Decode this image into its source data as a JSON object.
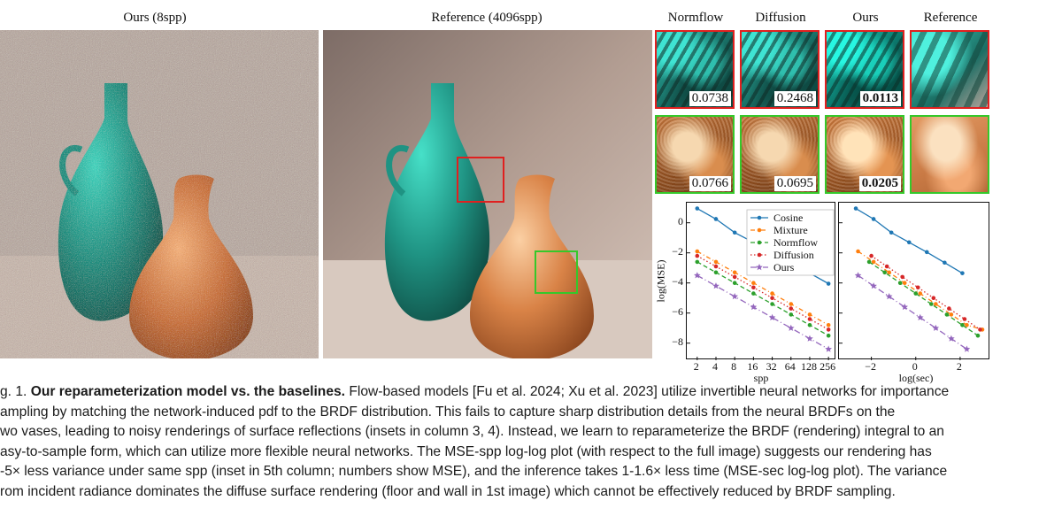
{
  "labels": {
    "ours_main": "Ours (8spp)",
    "reference_main": "Reference (4096spp)",
    "columns": [
      "Normflow",
      "Diffusion",
      "Ours",
      "Reference"
    ]
  },
  "insets": {
    "red_row_mse": [
      "0.0738",
      "0.2468",
      "0.0113"
    ],
    "green_row_mse": [
      "0.0766",
      "0.0695",
      "0.0205"
    ],
    "best_index": 2
  },
  "colors": {
    "red_box": "#e0201f",
    "green_box": "#35c82a",
    "cosine": "#1f77b4",
    "mixture": "#ff7f0e",
    "normflow": "#2ca02c",
    "diffusion": "#d62728",
    "ours": "#9467bd"
  },
  "chart_data": [
    {
      "type": "line",
      "title": "",
      "xlabel": "spp",
      "ylabel": "log(MSE)",
      "x": [
        2,
        4,
        8,
        16,
        32,
        64,
        128,
        256
      ],
      "x_scale": "log2",
      "xtick_labels": [
        "2",
        "4",
        "8",
        "16",
        "32",
        "64",
        "128",
        "256"
      ],
      "yticks": [
        0,
        -2,
        -4,
        -6,
        -8
      ],
      "ytick_labels": [
        "0",
        "−2",
        "−4",
        "−6",
        "−8"
      ],
      "ylim": [
        -8.9,
        1.1
      ],
      "legend": "top-right",
      "series": [
        {
          "name": "Cosine",
          "x": [
            2,
            4,
            8,
            16,
            32,
            64,
            128,
            256
          ],
          "values": [
            0.95,
            0.25,
            -0.65,
            -1.3,
            -1.95,
            -2.65,
            -3.35,
            -4.05
          ]
        },
        {
          "name": "Mixture",
          "x": [
            2,
            4,
            8,
            16,
            32,
            64,
            128,
            256
          ],
          "values": [
            -1.9,
            -2.6,
            -3.3,
            -4.0,
            -4.7,
            -5.4,
            -6.1,
            -6.8
          ]
        },
        {
          "name": "Normflow",
          "x": [
            2,
            4,
            8,
            16,
            32,
            64,
            128,
            256
          ],
          "values": [
            -2.6,
            -3.3,
            -4.0,
            -4.7,
            -5.4,
            -6.1,
            -6.8,
            -7.5
          ]
        },
        {
          "name": "Diffusion",
          "x": [
            2,
            4,
            8,
            16,
            32,
            64,
            128,
            256
          ],
          "values": [
            -2.2,
            -2.9,
            -3.6,
            -4.3,
            -5.0,
            -5.7,
            -6.4,
            -7.1
          ]
        },
        {
          "name": "Ours",
          "x": [
            2,
            4,
            8,
            16,
            32,
            64,
            128,
            256
          ],
          "values": [
            -3.5,
            -4.2,
            -4.9,
            -5.6,
            -6.3,
            -7.0,
            -7.7,
            -8.4
          ]
        }
      ]
    },
    {
      "type": "line",
      "title": "",
      "xlabel": "log(sec)",
      "ylabel": "",
      "xticks": [
        -2,
        0,
        2
      ],
      "xtick_labels": [
        "−2",
        "0",
        "2"
      ],
      "xlim": [
        -3.3,
        3.2
      ],
      "ylim": [
        -8.9,
        1.1
      ],
      "legend": "none",
      "series": [
        {
          "name": "Cosine",
          "x": [
            -2.7,
            -1.9,
            -1.1,
            -0.3,
            0.5,
            1.3,
            2.1
          ],
          "values": [
            0.95,
            0.25,
            -0.65,
            -1.3,
            -1.95,
            -2.65,
            -3.35
          ]
        },
        {
          "name": "Mixture",
          "x": [
            -2.6,
            -1.9,
            -1.2,
            -0.5,
            0.2,
            0.9,
            1.6,
            2.3,
            3.0
          ],
          "values": [
            -1.9,
            -2.6,
            -3.3,
            -4.0,
            -4.7,
            -5.4,
            -6.1,
            -6.8,
            -7.1
          ]
        },
        {
          "name": "Normflow",
          "x": [
            -2.1,
            -1.4,
            -0.7,
            0.0,
            0.7,
            1.4,
            2.1,
            2.8
          ],
          "values": [
            -2.6,
            -3.3,
            -4.0,
            -4.7,
            -5.4,
            -6.1,
            -6.8,
            -7.5
          ]
        },
        {
          "name": "Diffusion",
          "x": [
            -2.0,
            -1.3,
            -0.6,
            0.1,
            0.8,
            1.5,
            2.2,
            2.9
          ],
          "values": [
            -2.2,
            -2.9,
            -3.6,
            -4.3,
            -5.0,
            -5.7,
            -6.4,
            -7.1
          ]
        },
        {
          "name": "Ours",
          "x": [
            -2.6,
            -1.9,
            -1.2,
            -0.5,
            0.2,
            0.9,
            1.6,
            2.3
          ],
          "values": [
            -3.5,
            -4.2,
            -4.9,
            -5.6,
            -6.3,
            -7.0,
            -7.7,
            -8.4
          ]
        }
      ]
    }
  ],
  "caption": {
    "lines": [
      {
        "prefix": "g. 1.  ",
        "title": "Our reparameterization model vs. the baselines.",
        "rest": " Flow-based models [Fu et al. 2024; Xu et al. 2023] utilize invertible neural networks for importance"
      },
      {
        "text": "ampling by matching the network-induced pdf to the BRDF distribution. This fails to capture sharp distribution details from the neural BRDFs on the"
      },
      {
        "text": "wo vases, leading to noisy renderings of surface reflections (insets in column 3, 4). Instead, we learn to reparameterize the BRDF (rendering) integral to an"
      },
      {
        "text": "asy-to-sample form, which can utilize more flexible neural networks. The MSE-spp log-log plot (with respect to the full image) suggests our rendering has"
      },
      {
        "text": "-5× less variance under same spp (inset in 5th column; numbers show MSE), and the inference takes 1-1.6× less time (MSE-sec log-log plot). The variance"
      },
      {
        "text": "rom incident radiance dominates the diffuse surface rendering (floor and wall in 1st image) which cannot be effectively reduced by BRDF sampling."
      }
    ]
  }
}
